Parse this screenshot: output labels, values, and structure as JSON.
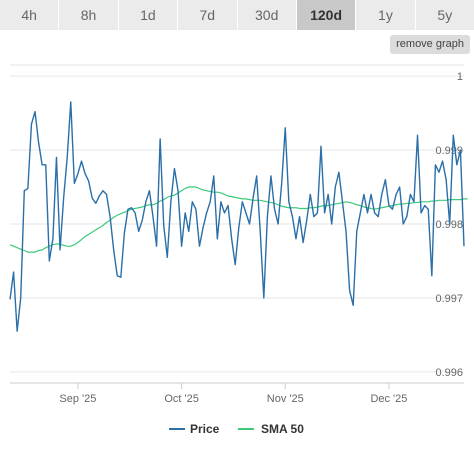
{
  "range_tabs": [
    {
      "label": "4h",
      "active": false
    },
    {
      "label": "8h",
      "active": false
    },
    {
      "label": "1d",
      "active": false
    },
    {
      "label": "7d",
      "active": false
    },
    {
      "label": "30d",
      "active": false
    },
    {
      "label": "120d",
      "active": true
    },
    {
      "label": "1y",
      "active": false
    },
    {
      "label": "5y",
      "active": false
    }
  ],
  "remove_graph_label": "remove graph",
  "chart_data": {
    "type": "line",
    "title": "",
    "xlabel": "",
    "ylabel": "",
    "ylim": [
      0.99585,
      1.00015
    ],
    "grid": true,
    "legend_position": "bottom-center",
    "y_ticks": [
      {
        "value": 1.0,
        "label": "1"
      },
      {
        "value": 0.999,
        "label": "0.999"
      },
      {
        "value": 0.998,
        "label": "0.998"
      },
      {
        "value": 0.997,
        "label": "0.997"
      },
      {
        "value": 0.996,
        "label": "0.996"
      }
    ],
    "x_ticks": [
      {
        "index": 19,
        "label": "Sep '25"
      },
      {
        "index": 48,
        "label": "Oct '25"
      },
      {
        "index": 77,
        "label": "Nov '25"
      },
      {
        "index": 106,
        "label": "Dec '25"
      }
    ],
    "series": [
      {
        "name": "Price",
        "color": "#2a6fa8",
        "values": [
          0.99698,
          0.99735,
          0.99655,
          0.997,
          0.99845,
          0.99848,
          0.99935,
          0.99952,
          0.9991,
          0.9988,
          0.9988,
          0.9975,
          0.9978,
          0.9989,
          0.99765,
          0.99835,
          0.9989,
          0.99965,
          0.99855,
          0.99868,
          0.99885,
          0.99868,
          0.99858,
          0.99835,
          0.99828,
          0.99838,
          0.99845,
          0.9984,
          0.9981,
          0.99765,
          0.9973,
          0.99728,
          0.99788,
          0.9982,
          0.99822,
          0.99815,
          0.9979,
          0.99805,
          0.9983,
          0.99845,
          0.9981,
          0.9977,
          0.99915,
          0.99798,
          0.99755,
          0.9983,
          0.99875,
          0.99845,
          0.9977,
          0.99815,
          0.9979,
          0.9983,
          0.9982,
          0.9977,
          0.99795,
          0.99815,
          0.9983,
          0.99865,
          0.9978,
          0.9983,
          0.99815,
          0.99825,
          0.9978,
          0.99745,
          0.99795,
          0.9983,
          0.99815,
          0.998,
          0.99835,
          0.99865,
          0.9979,
          0.997,
          0.9981,
          0.99865,
          0.9982,
          0.998,
          0.99855,
          0.9993,
          0.9983,
          0.9981,
          0.9978,
          0.9981,
          0.99775,
          0.99805,
          0.9984,
          0.9981,
          0.99815,
          0.99905,
          0.99815,
          0.9984,
          0.998,
          0.9985,
          0.9987,
          0.9983,
          0.9979,
          0.9971,
          0.9969,
          0.9979,
          0.99815,
          0.9984,
          0.99815,
          0.9984,
          0.99815,
          0.9981,
          0.9984,
          0.9986,
          0.99825,
          0.9982,
          0.9984,
          0.9985,
          0.998,
          0.9981,
          0.9984,
          0.9983,
          0.9992,
          0.99815,
          0.99825,
          0.9982,
          0.9973,
          0.9988,
          0.9987,
          0.99885,
          0.9986,
          0.998,
          0.9992,
          0.9988,
          0.999,
          0.9977
        ]
      },
      {
        "name": "SMA 50",
        "color": "#3cc97a",
        "values": [
          0.99772,
          0.9977,
          0.99768,
          0.99766,
          0.99764,
          0.99762,
          0.99762,
          0.99762,
          0.99764,
          0.99765,
          0.99768,
          0.9977,
          0.99772,
          0.99773,
          0.99773,
          0.99771,
          0.9977,
          0.9977,
          0.99772,
          0.99775,
          0.99779,
          0.99783,
          0.99786,
          0.99789,
          0.99792,
          0.99795,
          0.99798,
          0.99802,
          0.99805,
          0.99809,
          0.99812,
          0.99814,
          0.99816,
          0.99818,
          0.9982,
          0.99821,
          0.99822,
          0.99823,
          0.99825,
          0.99826,
          0.99826,
          0.99828,
          0.99831,
          0.99833,
          0.99836,
          0.99838,
          0.99839,
          0.99842,
          0.99845,
          0.99848,
          0.9985,
          0.9985,
          0.9985,
          0.99848,
          0.99846,
          0.99845,
          0.99844,
          0.99843,
          0.99843,
          0.99842,
          0.9984,
          0.99838,
          0.99837,
          0.99836,
          0.99835,
          0.99834,
          0.99834,
          0.99833,
          0.99832,
          0.99832,
          0.99832,
          0.99831,
          0.9983,
          0.99829,
          0.99828,
          0.99826,
          0.99824,
          0.99823,
          0.99822,
          0.99822,
          0.99822,
          0.99821,
          0.99821,
          0.99821,
          0.99822,
          0.99822,
          0.99823,
          0.99824,
          0.99825,
          0.99825,
          0.99826,
          0.99827,
          0.99828,
          0.99829,
          0.9983,
          0.99829,
          0.99828,
          0.99826,
          0.99825,
          0.99823,
          0.99822,
          0.99821,
          0.9982,
          0.99821,
          0.99822,
          0.99823,
          0.99824,
          0.99825,
          0.99826,
          0.99827,
          0.99827,
          0.99828,
          0.99828,
          0.99829,
          0.99829,
          0.9983,
          0.9983,
          0.9983,
          0.99831,
          0.99831,
          0.99832,
          0.99832,
          0.99832,
          0.99833,
          0.99833,
          0.99833,
          0.99833,
          0.99834,
          0.99834
        ]
      }
    ]
  }
}
